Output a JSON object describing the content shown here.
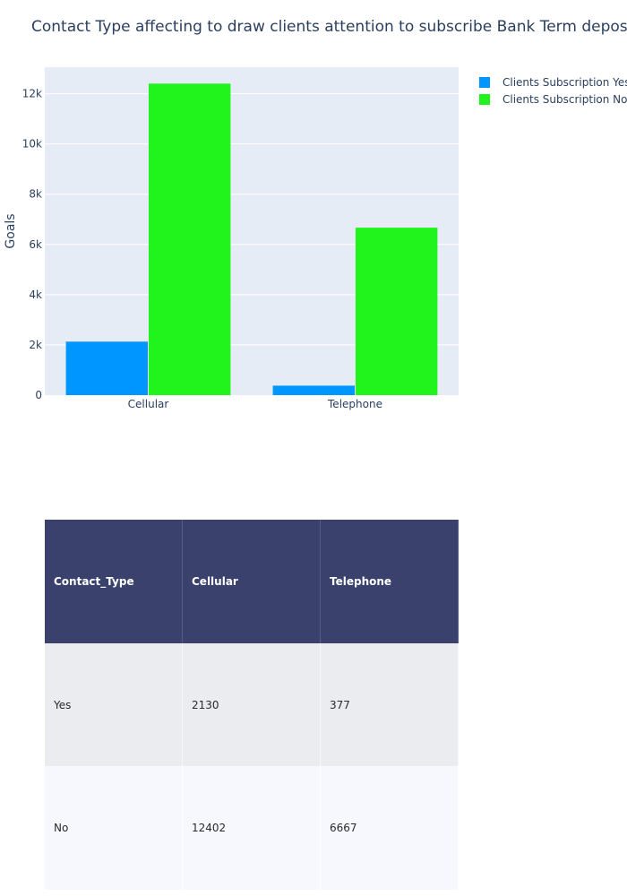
{
  "chart_data": [
    {
      "type": "bar",
      "title": "Contact Type affecting to draw clients attention to subscribe Bank Term deposit",
      "categories": [
        "Cellular",
        "Telephone"
      ],
      "series": [
        {
          "name": "Clients Subscription Yes",
          "values": [
            2130,
            377
          ]
        },
        {
          "name": "Clients Subscription No",
          "values": [
            12402,
            6667
          ]
        }
      ],
      "xlabel": "",
      "ylabel": "Goals",
      "ylim": [
        0,
        13055
      ],
      "yticks": [
        0,
        2000,
        4000,
        6000,
        8000,
        10000,
        12000
      ],
      "ytick_labels": [
        "0",
        "2k",
        "4k",
        "6k",
        "8k",
        "10k",
        "12k"
      ],
      "grid": true,
      "legend_placement": "top-right"
    },
    {
      "type": "table",
      "columns": [
        "Contact_Type",
        "Cellular",
        "Telephone"
      ],
      "rows": [
        [
          "Yes",
          "2130",
          "377"
        ],
        [
          "No",
          "12402",
          "6667"
        ]
      ]
    }
  ],
  "colors": {
    "yes": "#0096ff",
    "no": "#21f31d",
    "plot_bg": "#e5ecf6",
    "header_bg": "#3a416c"
  }
}
